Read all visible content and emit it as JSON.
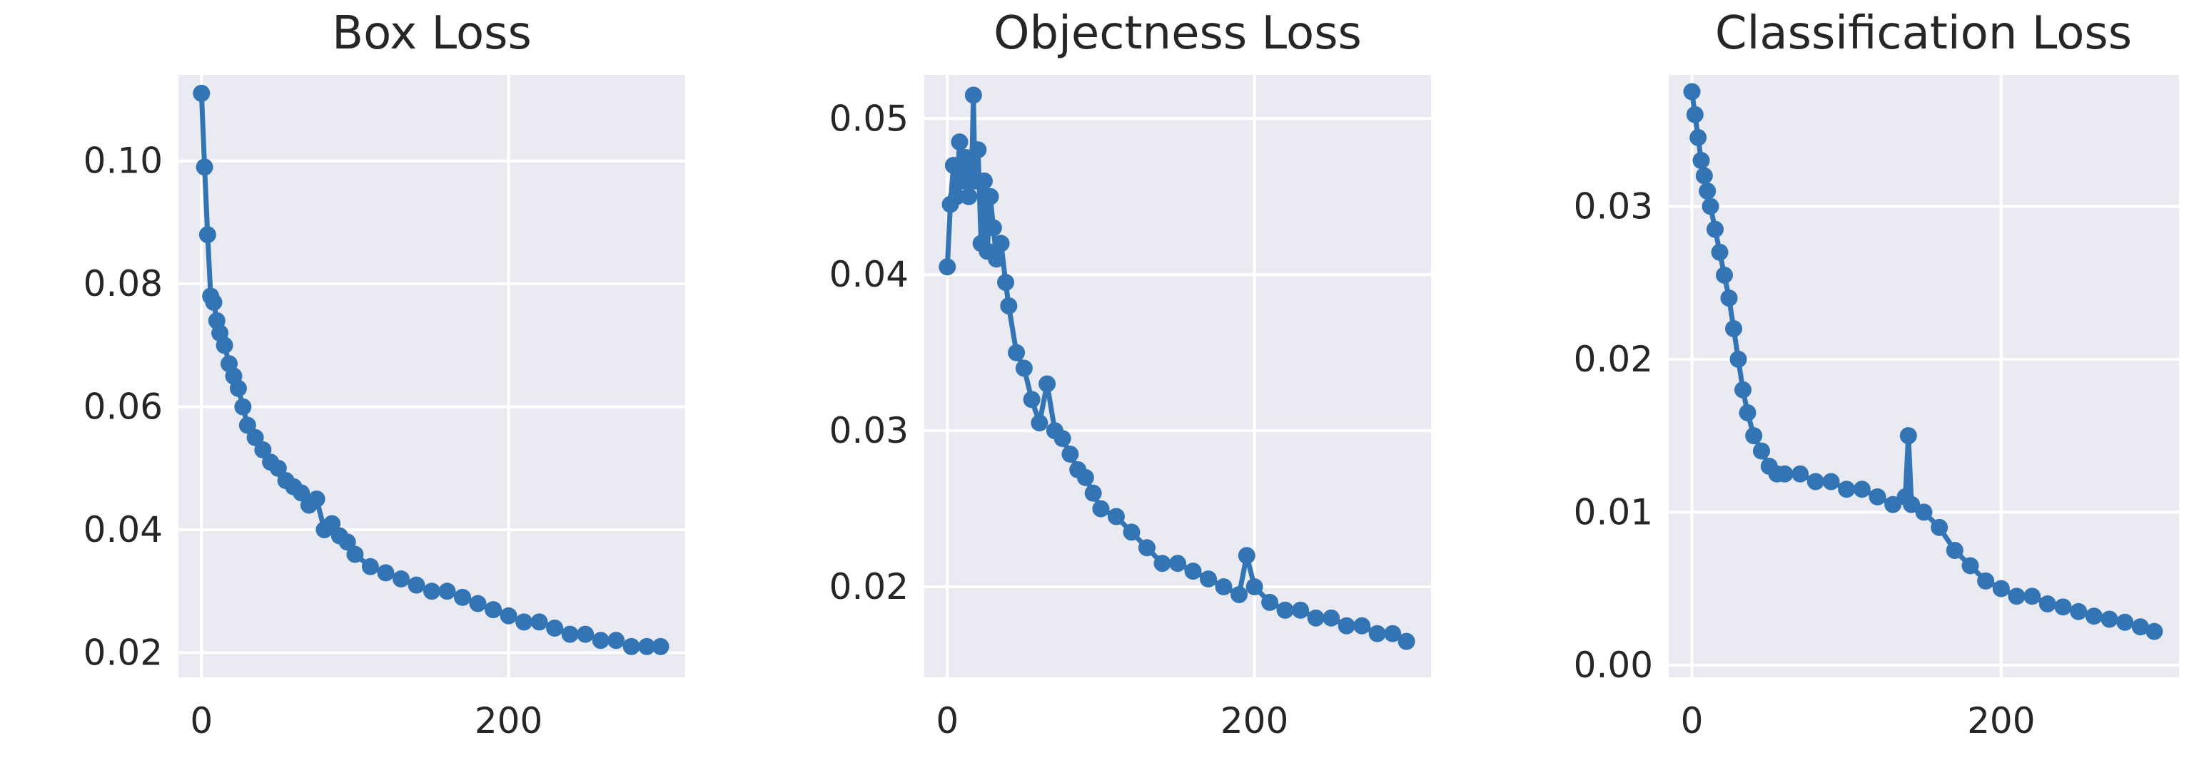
{
  "colors": {
    "plot_bg": "#eaeaf2",
    "grid": "#ffffff",
    "series": "#3274b4",
    "text": "#262626"
  },
  "chart_data": [
    {
      "type": "line",
      "title": "Box Loss",
      "xlabel": "",
      "ylabel": "",
      "xlim": [
        -15,
        315
      ],
      "ylim": [
        0.016,
        0.114
      ],
      "xticks": [
        0,
        200
      ],
      "xtick_labels": [
        "0",
        "200"
      ],
      "yticks": [
        0.02,
        0.04,
        0.06,
        0.08,
        0.1
      ],
      "ytick_labels": [
        "0.02",
        "0.04",
        "0.06",
        "0.08",
        "0.10"
      ],
      "grid": true,
      "legend": "none",
      "series": [
        {
          "markers": true,
          "x": [
            0,
            2,
            4,
            6,
            8,
            10,
            12,
            15,
            18,
            21,
            24,
            27,
            30,
            35,
            40,
            45,
            50,
            55,
            60,
            65,
            70,
            75,
            80,
            85,
            90,
            95,
            100,
            110,
            120,
            130,
            140,
            150,
            160,
            170,
            180,
            190,
            200,
            210,
            220,
            230,
            240,
            250,
            260,
            270,
            280,
            290,
            299
          ],
          "y": [
            0.111,
            0.099,
            0.088,
            0.078,
            0.077,
            0.074,
            0.072,
            0.07,
            0.067,
            0.065,
            0.063,
            0.06,
            0.057,
            0.055,
            0.053,
            0.051,
            0.05,
            0.048,
            0.047,
            0.046,
            0.044,
            0.045,
            0.04,
            0.041,
            0.039,
            0.038,
            0.036,
            0.034,
            0.033,
            0.032,
            0.031,
            0.03,
            0.03,
            0.029,
            0.028,
            0.027,
            0.026,
            0.025,
            0.025,
            0.024,
            0.023,
            0.023,
            0.022,
            0.022,
            0.021,
            0.021,
            0.021
          ]
        }
      ]
    },
    {
      "type": "line",
      "title": "Objectness Loss",
      "xlabel": "",
      "ylabel": "",
      "xlim": [
        -15,
        315
      ],
      "ylim": [
        0.0142,
        0.0528
      ],
      "xticks": [
        0,
        200
      ],
      "xtick_labels": [
        "0",
        "200"
      ],
      "yticks": [
        0.02,
        0.03,
        0.04,
        0.05
      ],
      "ytick_labels": [
        "0.02",
        "0.03",
        "0.04",
        "0.05"
      ],
      "grid": true,
      "legend": "none",
      "series": [
        {
          "markers": true,
          "x": [
            0,
            2,
            4,
            6,
            8,
            10,
            12,
            14,
            16,
            17,
            18,
            20,
            22,
            24,
            26,
            28,
            30,
            32,
            35,
            38,
            40,
            45,
            50,
            55,
            60,
            65,
            70,
            75,
            80,
            85,
            90,
            95,
            100,
            110,
            120,
            130,
            140,
            150,
            160,
            170,
            180,
            190,
            195,
            200,
            210,
            220,
            230,
            240,
            250,
            260,
            270,
            280,
            290,
            299
          ],
          "y": [
            0.0405,
            0.0445,
            0.047,
            0.045,
            0.0485,
            0.046,
            0.0475,
            0.045,
            0.047,
            0.0515,
            0.046,
            0.048,
            0.042,
            0.046,
            0.0415,
            0.045,
            0.043,
            0.041,
            0.042,
            0.0395,
            0.038,
            0.035,
            0.034,
            0.032,
            0.0305,
            0.033,
            0.03,
            0.0295,
            0.0285,
            0.0275,
            0.027,
            0.026,
            0.025,
            0.0245,
            0.0235,
            0.0225,
            0.0215,
            0.0215,
            0.021,
            0.0205,
            0.02,
            0.0195,
            0.022,
            0.02,
            0.019,
            0.0185,
            0.0185,
            0.018,
            0.018,
            0.0175,
            0.0175,
            0.017,
            0.017,
            0.0165
          ]
        }
      ]
    },
    {
      "type": "line",
      "title": "Classification Loss",
      "xlabel": "",
      "ylabel": "",
      "xlim": [
        -15,
        315
      ],
      "ylim": [
        -0.0008,
        0.0386
      ],
      "xticks": [
        0,
        200
      ],
      "xtick_labels": [
        "0",
        "200"
      ],
      "yticks": [
        0.0,
        0.01,
        0.02,
        0.03
      ],
      "ytick_labels": [
        "0.00",
        "0.01",
        "0.02",
        "0.03"
      ],
      "grid": true,
      "legend": "none",
      "series": [
        {
          "markers": true,
          "x": [
            0,
            2,
            4,
            6,
            8,
            10,
            12,
            15,
            18,
            21,
            24,
            27,
            30,
            33,
            36,
            40,
            45,
            50,
            55,
            60,
            70,
            80,
            90,
            100,
            110,
            120,
            130,
            138,
            140,
            142,
            150,
            160,
            170,
            180,
            190,
            200,
            210,
            220,
            230,
            240,
            250,
            260,
            270,
            280,
            290,
            299
          ],
          "y": [
            0.0375,
            0.036,
            0.0345,
            0.033,
            0.032,
            0.031,
            0.03,
            0.0285,
            0.027,
            0.0255,
            0.024,
            0.022,
            0.02,
            0.018,
            0.0165,
            0.015,
            0.014,
            0.013,
            0.0125,
            0.0125,
            0.0125,
            0.012,
            0.012,
            0.0115,
            0.0115,
            0.011,
            0.0105,
            0.011,
            0.015,
            0.0105,
            0.01,
            0.009,
            0.0075,
            0.0065,
            0.0055,
            0.005,
            0.0045,
            0.0045,
            0.004,
            0.0038,
            0.0035,
            0.0032,
            0.003,
            0.0028,
            0.0025,
            0.0022
          ]
        }
      ]
    }
  ]
}
